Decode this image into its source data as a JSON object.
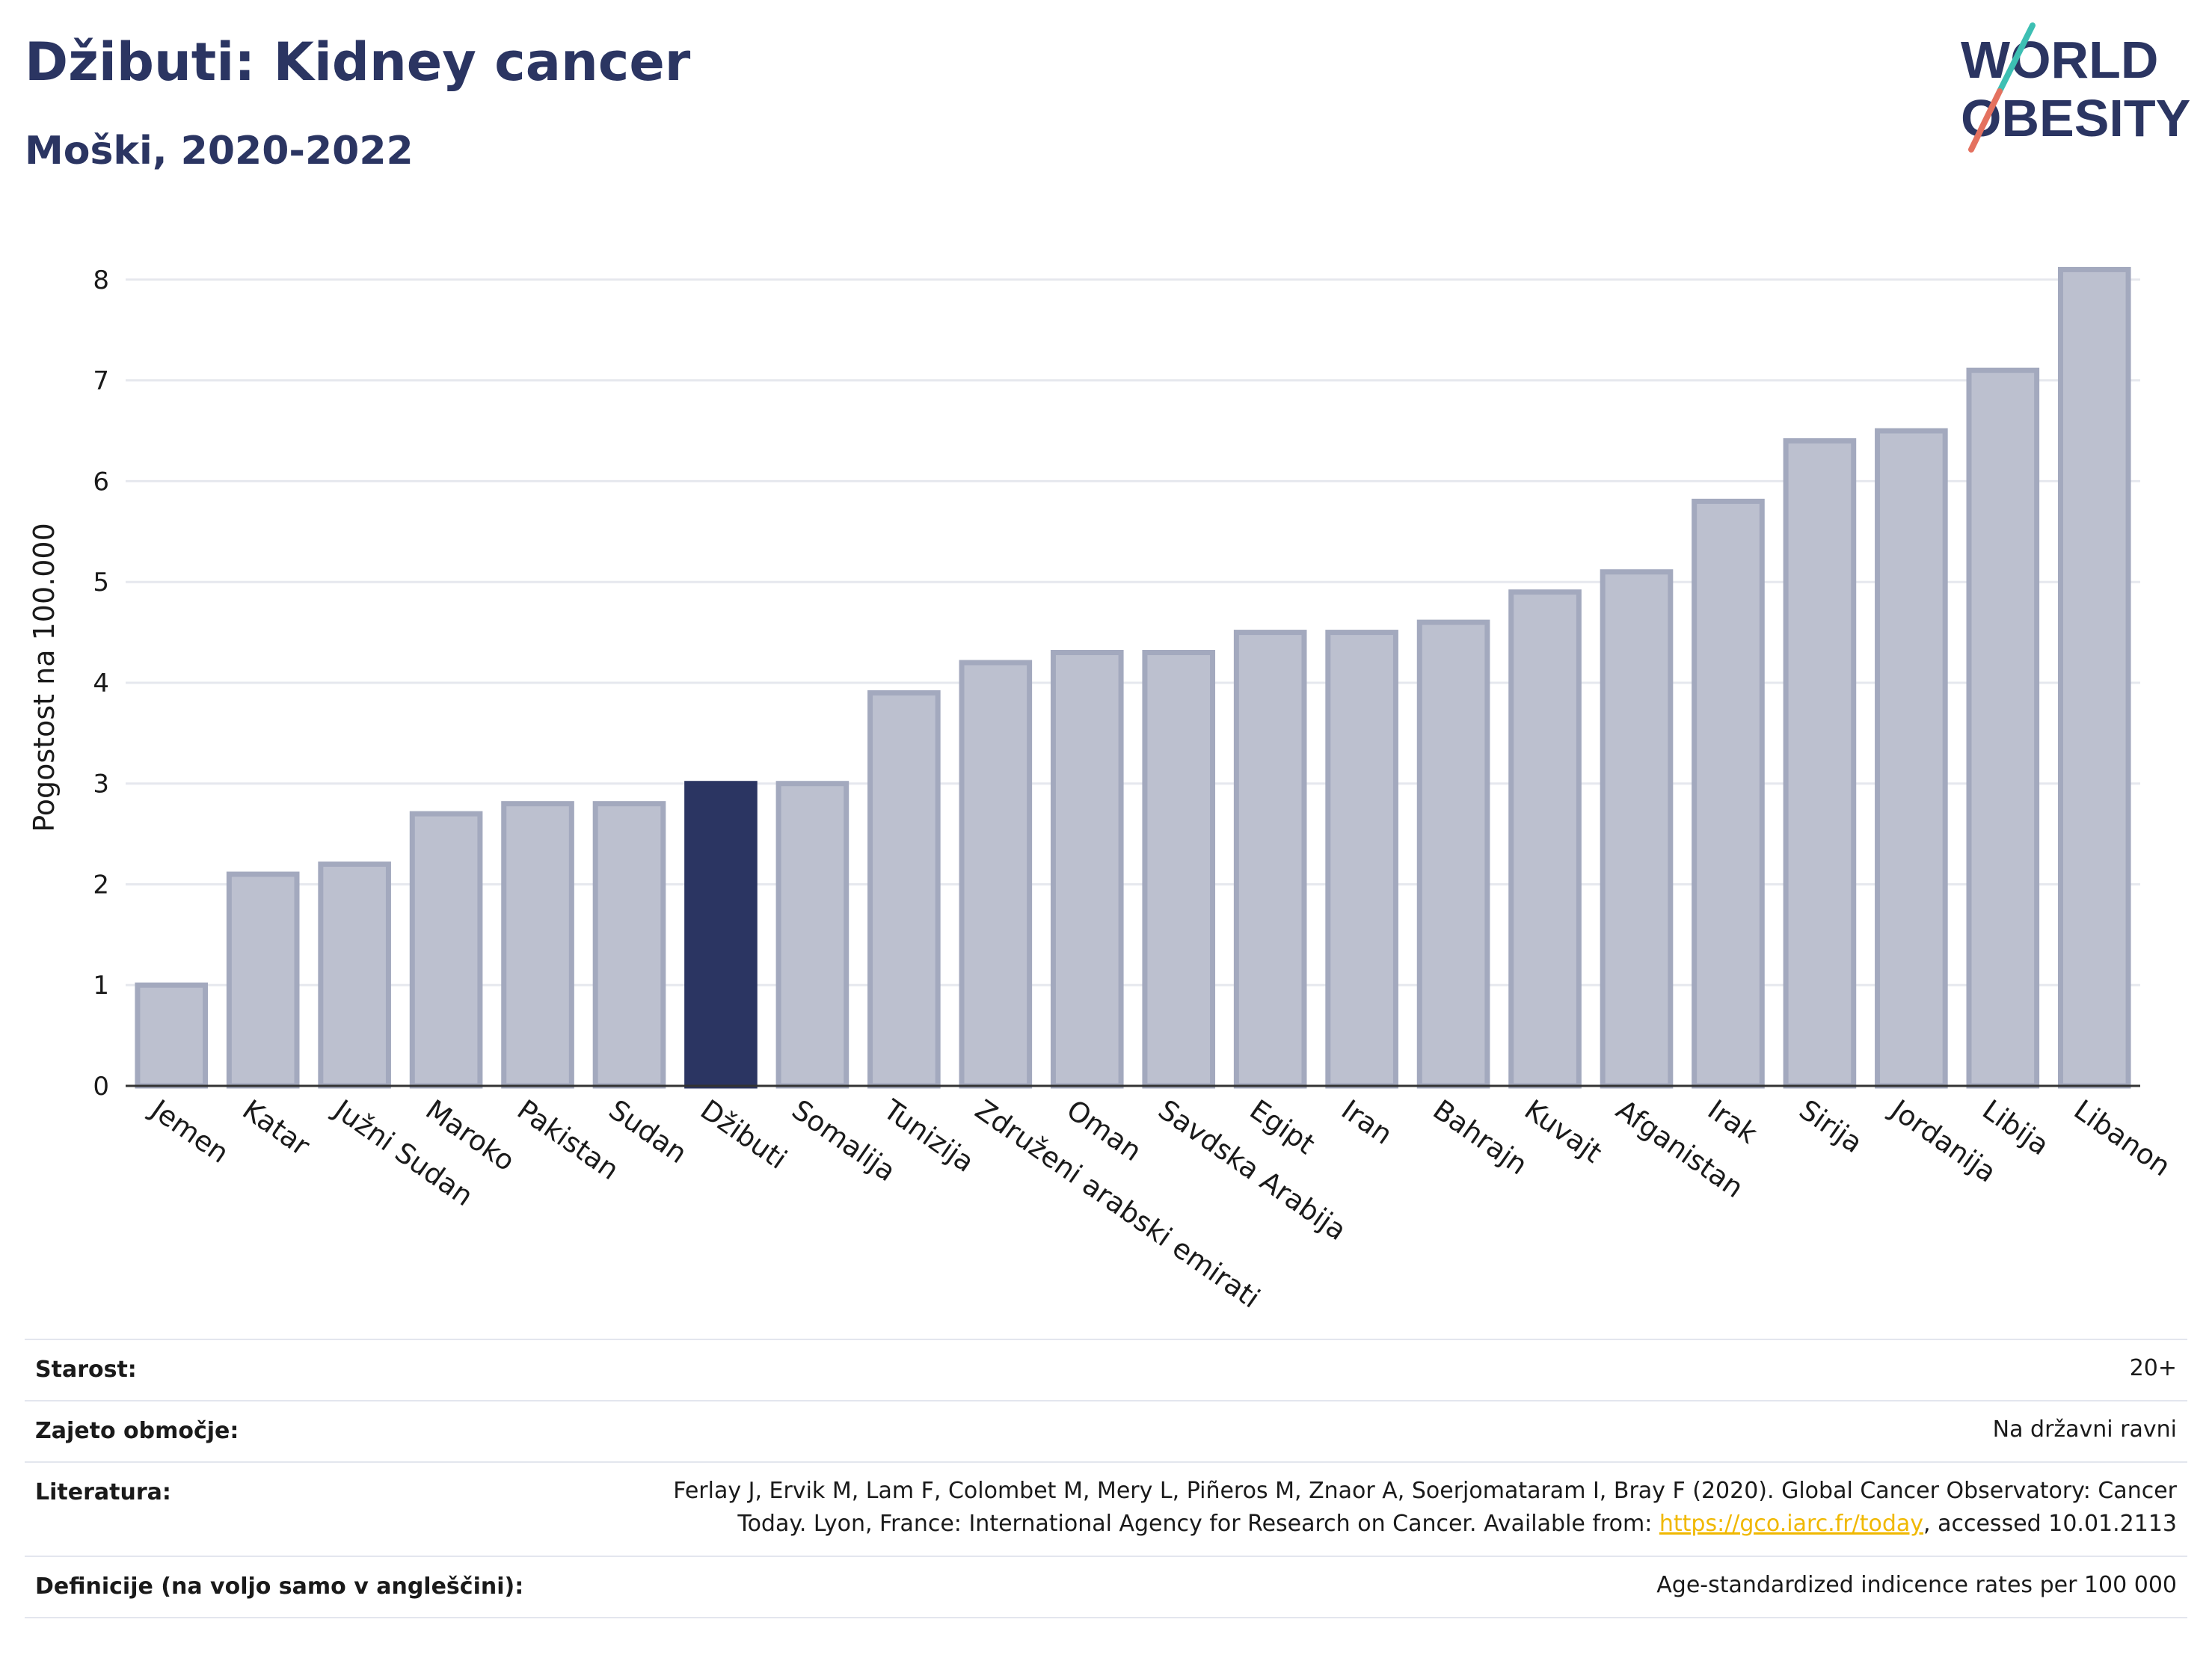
{
  "header": {
    "title": "Džibuti: Kidney cancer",
    "subtitle": "Moški, 2020-2022",
    "logo_line1": "WORLD",
    "logo_line2": "OBESITY"
  },
  "chart_data": {
    "type": "bar",
    "title": "Džibuti: Kidney cancer",
    "subtitle": "Moški, 2020-2022",
    "ylabel": "Pogostost na 100.000",
    "xlabel": "",
    "ylim": [
      0,
      8.4
    ],
    "yticks": [
      0,
      1,
      2,
      3,
      4,
      5,
      6,
      7,
      8
    ],
    "grid": true,
    "highlight": "Džibuti",
    "colors": {
      "bar": "#bcc0cf",
      "bar_edge": "#a3a9be",
      "highlight": "#2b3562",
      "grid": "#e6e8ee",
      "axis": "#333333"
    },
    "categories": [
      "Jemen",
      "Katar",
      "Južni Sudan",
      "Maroko",
      "Pakistan",
      "Sudan",
      "Džibuti",
      "Somalija",
      "Tunizija",
      "Združeni arabski emirati",
      "Oman",
      "Savdska Arabija",
      "Egipt",
      "Iran",
      "Bahrajn",
      "Kuvajt",
      "Afganistan",
      "Irak",
      "Sirija",
      "Jordanija",
      "Libija",
      "Libanon"
    ],
    "values": [
      1.0,
      2.1,
      2.2,
      2.7,
      2.8,
      2.8,
      3.0,
      3.0,
      3.9,
      4.2,
      4.3,
      4.3,
      4.5,
      4.5,
      4.6,
      4.9,
      5.1,
      5.8,
      6.4,
      6.5,
      7.1,
      8.1
    ]
  },
  "info": {
    "rows": [
      {
        "label": "Starost:",
        "value": "20+"
      },
      {
        "label": "Zajeto območje:",
        "value": "Na državni ravni"
      },
      {
        "label": "Literatura:",
        "value_line1": "Ferlay J, Ervik M, Lam F, Colombet M, Mery L, Piñeros M, Znaor A, Soerjomataram I, Bray F (2020). Global Cancer Observatory: Cancer",
        "value_line2_pre": "Today. Lyon, France: International Agency for Research on Cancer. Available from: ",
        "link": "https://gco.iarc.fr/today",
        "value_line2_post": ", accessed 10.01.2113"
      },
      {
        "label": "Definicije (na voljo samo v angleščini):",
        "value": "Age-standardized indicence rates per 100 000"
      }
    ]
  }
}
